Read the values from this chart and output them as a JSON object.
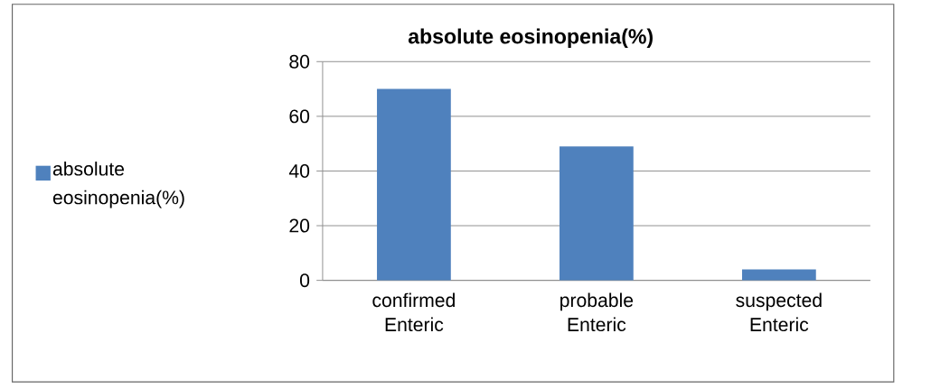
{
  "chart_data": {
    "type": "bar",
    "title": "absolute eosinopenia(%)",
    "categories": [
      "confirmed Enteric",
      "probable Enteric",
      "suspected Enteric"
    ],
    "series": [
      {
        "name": "absolute eosinopenia(%)",
        "color": "#4f81bd",
        "values": [
          70,
          49,
          4
        ]
      }
    ],
    "ylim": [
      0,
      80
    ],
    "yticks": [
      0,
      20,
      40,
      60,
      80
    ],
    "grid": "y",
    "legend": "left"
  }
}
